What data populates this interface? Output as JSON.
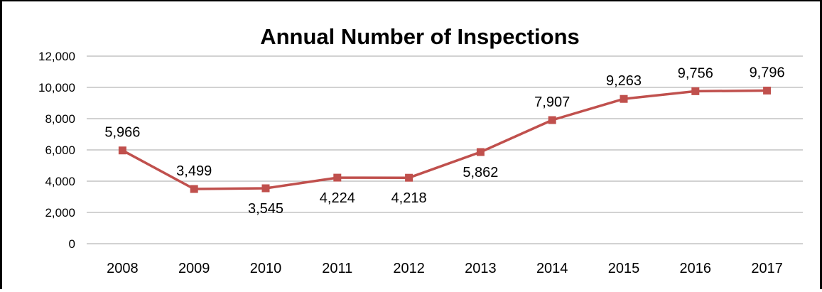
{
  "chart_data": {
    "type": "line",
    "title": "Annual Number of Inspections",
    "xlabel": "",
    "ylabel": "",
    "categories": [
      "2008",
      "2009",
      "2010",
      "2011",
      "2012",
      "2013",
      "2014",
      "2015",
      "2016",
      "2017"
    ],
    "series": [
      {
        "values": [
          5966,
          3499,
          3545,
          4224,
          4218,
          5862,
          7907,
          9263,
          9756,
          9796
        ],
        "labels": [
          "5,966",
          "3,499",
          "3,545",
          "4,224",
          "4,218",
          "5,862",
          "7,907",
          "9,263",
          "9,756",
          "9,796"
        ],
        "label_positions": [
          "above",
          "above",
          "below",
          "below",
          "below",
          "below",
          "above",
          "above",
          "above",
          "above"
        ],
        "color": "#c0504d",
        "marker": "square"
      }
    ],
    "ylim": [
      0,
      12000
    ],
    "yticks": [
      0,
      2000,
      4000,
      6000,
      8000,
      10000,
      12000
    ],
    "ytick_labels": [
      "0",
      "2,000",
      "4,000",
      "6,000",
      "8,000",
      "10,000",
      "12,000"
    ],
    "grid": true,
    "legend": "none"
  }
}
